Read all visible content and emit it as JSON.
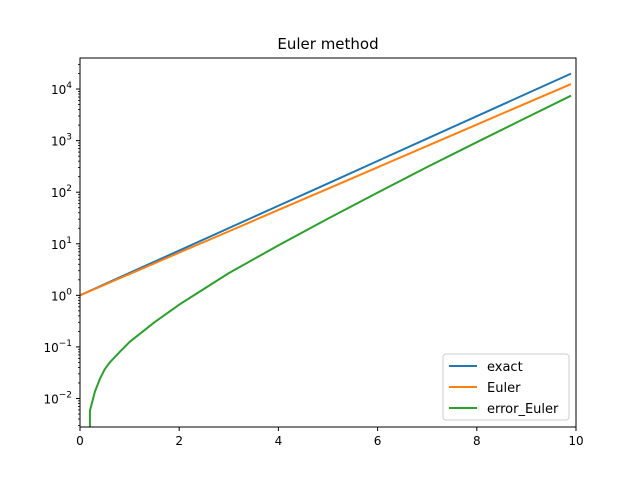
{
  "chart_data": {
    "type": "line",
    "title": "Euler method",
    "xlabel": "",
    "ylabel": "",
    "xlim": [
      0,
      10
    ],
    "ylim": [
      0.0028,
      40000
    ],
    "yscale": "log",
    "grid": false,
    "legend_position": "lower-right",
    "x_ticks": [
      "0",
      "2",
      "4",
      "6",
      "8",
      "10"
    ],
    "y_ticks": [
      {
        "base": "10",
        "exp": "−2"
      },
      {
        "base": "10",
        "exp": "−1"
      },
      {
        "base": "10",
        "exp": "0"
      },
      {
        "base": "10",
        "exp": "1"
      },
      {
        "base": "10",
        "exp": "2"
      },
      {
        "base": "10",
        "exp": "3"
      },
      {
        "base": "10",
        "exp": "4"
      }
    ],
    "series": [
      {
        "name": "exact",
        "color": "#1f77b4",
        "x": [
          0,
          1,
          2,
          3,
          4,
          5,
          6,
          7,
          8,
          9,
          9.9
        ],
        "y": [
          1,
          2.72,
          7.39,
          20.1,
          54.6,
          148,
          403,
          1097,
          2981,
          8103,
          19930
        ]
      },
      {
        "name": "Euler",
        "color": "#ff7f0e",
        "x": [
          0,
          1,
          2,
          3,
          4,
          5,
          6,
          7,
          8,
          9,
          9.9
        ],
        "y": [
          1,
          2.59,
          6.73,
          17.4,
          45.3,
          117,
          304,
          789,
          2048,
          5313,
          12500
        ]
      },
      {
        "name": "error_Euler",
        "color": "#2ca02c",
        "x": [
          0.2,
          0.3,
          0.4,
          0.5,
          0.6,
          0.8,
          1,
          1.5,
          2,
          3,
          4,
          5,
          6,
          7,
          8,
          9,
          9.9
        ],
        "y": [
          0.0058,
          0.0135,
          0.0239,
          0.037,
          0.05,
          0.08,
          0.125,
          0.3,
          0.66,
          2.7,
          9.3,
          30.7,
          98,
          308,
          933,
          2790,
          7430
        ]
      }
    ]
  }
}
